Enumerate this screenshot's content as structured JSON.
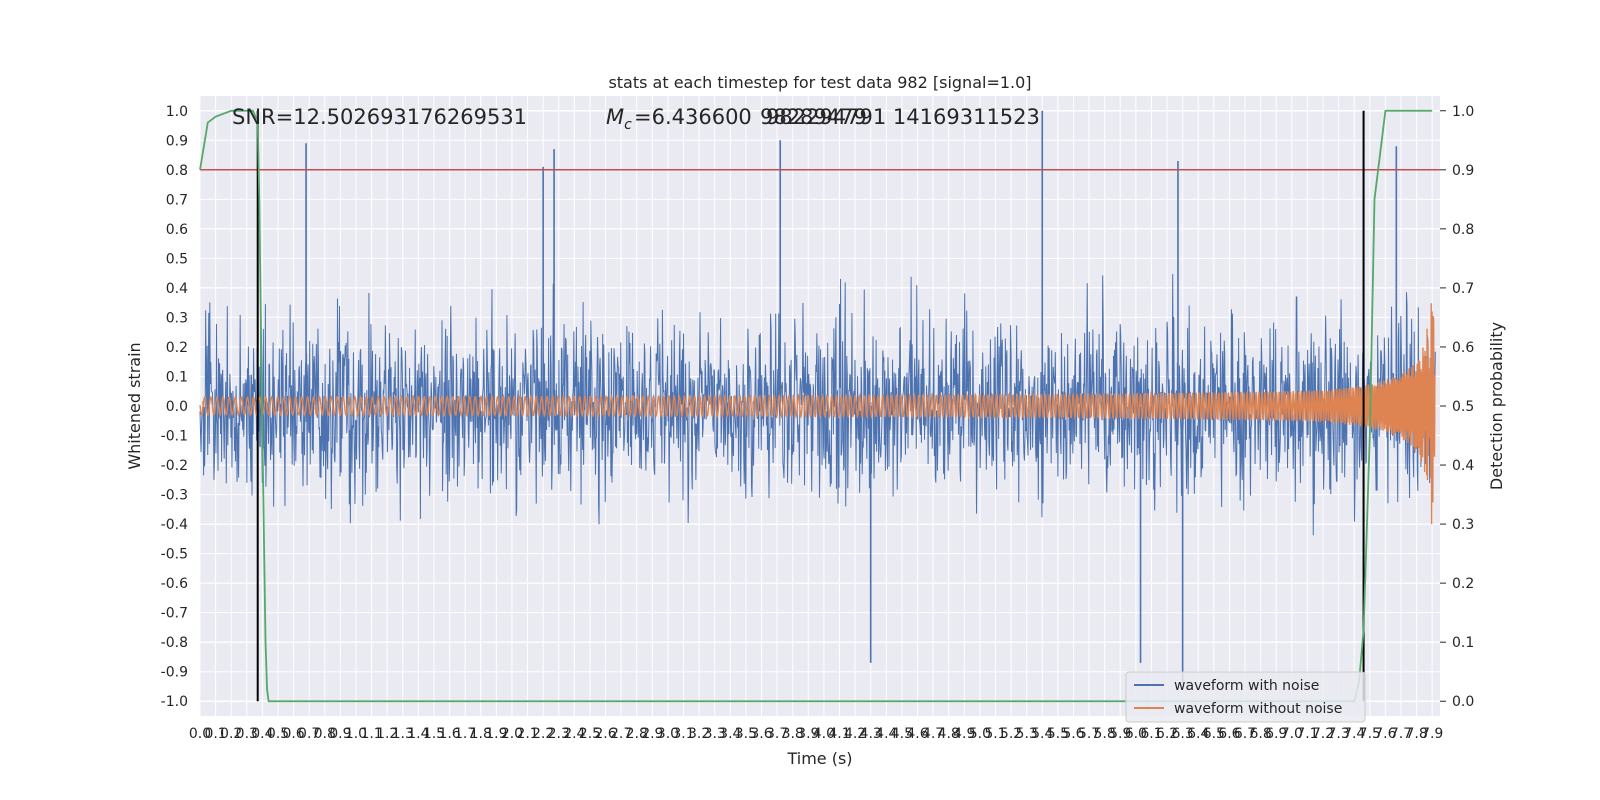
{
  "chart_data": {
    "type": "line",
    "title": "stats at each timestep for test data 982 [signal=1.0]",
    "xlabel": "Time (s)",
    "ylabel": "Whitened strain",
    "y2label": "Detection probability",
    "xlim": [
      0.0,
      7.95
    ],
    "ylim": [
      -1.05,
      1.05
    ],
    "y2lim": [
      -0.025,
      1.025
    ],
    "x_tick_step": 0.1,
    "y_ticks": [
      -1.0,
      -0.9,
      -0.8,
      -0.7,
      -0.6,
      -0.5,
      -0.4,
      -0.3,
      -0.2,
      -0.1,
      0.0,
      0.1,
      0.2,
      0.3,
      0.4,
      0.5,
      0.6,
      0.7,
      0.8,
      0.9,
      1.0
    ],
    "y2_ticks": [
      0.0,
      0.1,
      0.2,
      0.3,
      0.4,
      0.5,
      0.6,
      0.7,
      0.8,
      0.9,
      1.0
    ],
    "grid": true,
    "legend_position": "lower-right",
    "annotations": {
      "snr": "SNR=12.502693176269531",
      "mc_prefix": "=6.436600",
      "mc_overlap": "98289479",
      "mc_rest": "982294791 14169311523"
    },
    "threshold_line": {
      "y2": 0.9,
      "color": "#c44e52"
    },
    "vertical_markers_x": [
      0.37,
      7.46
    ],
    "series": [
      {
        "name": "waveform with noise",
        "color": "#4c72b0",
        "description_band_center": 0.0,
        "typical_extent": [
          -0.45,
          0.45
        ],
        "peak_highlights": [
          {
            "x": 0.68,
            "y": 0.89
          },
          {
            "x": 2.2,
            "y": 0.81
          },
          {
            "x": 2.27,
            "y": 0.87
          },
          {
            "x": 3.72,
            "y": 0.9
          },
          {
            "x": 5.4,
            "y": 1.0
          },
          {
            "x": 6.27,
            "y": 0.83
          },
          {
            "x": 7.67,
            "y": 0.88
          },
          {
            "x": 7.46,
            "y": 0.86
          },
          {
            "x": 6.3,
            "y": -0.94
          },
          {
            "x": 4.3,
            "y": -0.87
          },
          {
            "x": 6.03,
            "y": -0.87
          }
        ]
      },
      {
        "name": "waveform without noise",
        "color": "#dd8452",
        "chirp_start_amplitude": 0.03,
        "chirp_end_amplitude": 0.4,
        "merger_time": 7.92
      },
      {
        "name": "detection probability",
        "color": "#55a868",
        "axis": "y2",
        "x": [
          0.0,
          0.05,
          0.1,
          0.2,
          0.3,
          0.34,
          0.37,
          0.38,
          0.4,
          0.42,
          0.43,
          0.44,
          0.5,
          1.0,
          2.0,
          3.0,
          4.0,
          5.0,
          6.0,
          7.0,
          7.4,
          7.43,
          7.46,
          7.5,
          7.53,
          7.6,
          7.7,
          7.8,
          7.9
        ],
        "y": [
          0.9,
          0.98,
          0.99,
          1.0,
          1.0,
          1.0,
          0.98,
          0.85,
          0.45,
          0.1,
          0.02,
          0.0,
          0.0,
          0.0,
          0.0,
          0.0,
          0.0,
          0.0,
          0.0,
          0.0,
          0.0,
          0.03,
          0.12,
          0.45,
          0.85,
          1.0,
          1.0,
          1.0,
          1.0
        ]
      }
    ]
  }
}
